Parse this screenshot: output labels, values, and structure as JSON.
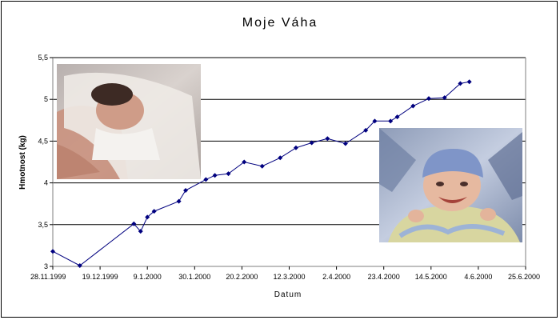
{
  "chart_data": {
    "type": "line",
    "title": "Moje Váha",
    "xlabel": "Datum",
    "ylabel": "Hmotnost (kg)",
    "ylim": [
      3,
      5.5
    ],
    "y_ticks": [
      "3",
      "3,5",
      "4",
      "4,5",
      "5",
      "5,5"
    ],
    "x_ticks": [
      "28.11.1999",
      "19.12.1999",
      "9.1.2000",
      "30.1.2000",
      "20.2.2000",
      "12.3.2000",
      "2.4.2000",
      "23.4.2000",
      "14.5.2000",
      "4.6.2000",
      "25.6.2000"
    ],
    "grid": true,
    "series": [
      {
        "color": "#00007f",
        "points": [
          {
            "x": "1999-11-28",
            "y": 3.18
          },
          {
            "x": "1999-12-10",
            "y": 3.01
          },
          {
            "x": "2000-01-03",
            "y": 3.51
          },
          {
            "x": "2000-01-06",
            "y": 3.42
          },
          {
            "x": "2000-01-09",
            "y": 3.59
          },
          {
            "x": "2000-01-12",
            "y": 3.66
          },
          {
            "x": "2000-01-23",
            "y": 3.78
          },
          {
            "x": "2000-01-26",
            "y": 3.91
          },
          {
            "x": "2000-02-04",
            "y": 4.04
          },
          {
            "x": "2000-02-08",
            "y": 4.09
          },
          {
            "x": "2000-02-14",
            "y": 4.11
          },
          {
            "x": "2000-02-21",
            "y": 4.25
          },
          {
            "x": "2000-02-29",
            "y": 4.2
          },
          {
            "x": "2000-03-08",
            "y": 4.3
          },
          {
            "x": "2000-03-15",
            "y": 4.42
          },
          {
            "x": "2000-03-22",
            "y": 4.48
          },
          {
            "x": "2000-03-29",
            "y": 4.53
          },
          {
            "x": "2000-04-06",
            "y": 4.47
          },
          {
            "x": "2000-04-15",
            "y": 4.63
          },
          {
            "x": "2000-04-19",
            "y": 4.74
          },
          {
            "x": "2000-04-26",
            "y": 4.74
          },
          {
            "x": "2000-04-29",
            "y": 4.79
          },
          {
            "x": "2000-05-06",
            "y": 4.92
          },
          {
            "x": "2000-05-13",
            "y": 5.01
          },
          {
            "x": "2000-05-20",
            "y": 5.02
          },
          {
            "x": "2000-05-27",
            "y": 5.19
          },
          {
            "x": "2000-05-31",
            "y": 5.21
          }
        ]
      }
    ],
    "photos": [
      {
        "subject": "newborn-sleeping-photo"
      },
      {
        "subject": "smiling-baby-in-cap-photo"
      }
    ]
  }
}
